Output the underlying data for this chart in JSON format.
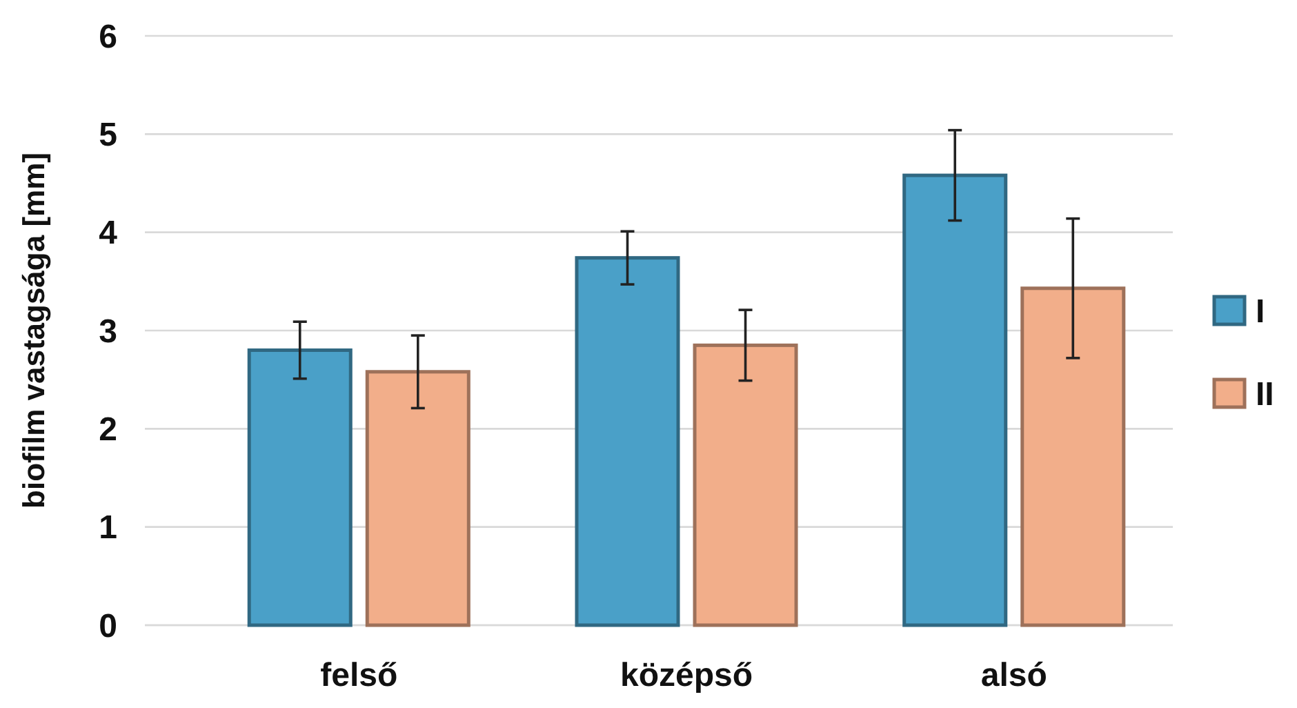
{
  "chart_data": {
    "type": "bar",
    "ylabel": "biofilm vastagsága [mm]",
    "categories": [
      "felső",
      "középső",
      "alsó"
    ],
    "series": [
      {
        "name": "I",
        "color": "#4aa0c8",
        "values": [
          2.8,
          3.74,
          4.58
        ],
        "errors": [
          0.29,
          0.27,
          0.46
        ]
      },
      {
        "name": "II",
        "color": "#f2ae8a",
        "values": [
          2.58,
          2.85,
          3.43
        ],
        "errors": [
          0.37,
          0.36,
          0.71
        ]
      }
    ],
    "ylim": [
      0,
      6
    ],
    "yticks": [
      0,
      1,
      2,
      3,
      4,
      5,
      6
    ],
    "grid": "y",
    "legend": "right"
  }
}
